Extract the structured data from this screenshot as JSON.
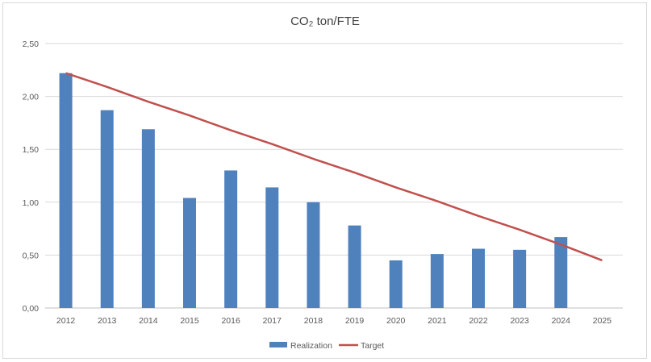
{
  "chart_data": {
    "type": "bar",
    "title": "CO₂ ton/FTE",
    "categories": [
      "2012",
      "2013",
      "2014",
      "2015",
      "2016",
      "2017",
      "2018",
      "2019",
      "2020",
      "2021",
      "2022",
      "2023",
      "2024",
      "2025"
    ],
    "y_tick_labels": [
      "0,00",
      "0,50",
      "1,00",
      "1,50",
      "2,00",
      "2,50"
    ],
    "ylim": [
      0,
      2.5
    ],
    "grid": true,
    "legend_position": "bottom",
    "series": [
      {
        "name": "Realization",
        "type": "bar",
        "color": "#4f81bd",
        "values": [
          2.22,
          1.87,
          1.69,
          1.04,
          1.3,
          1.14,
          1.0,
          0.78,
          0.45,
          0.51,
          0.56,
          0.55,
          0.67,
          null
        ]
      },
      {
        "name": "Target",
        "type": "line",
        "color": "#c0504d",
        "values": [
          2.22,
          2.09,
          1.95,
          1.82,
          1.68,
          1.55,
          1.41,
          1.28,
          1.14,
          1.01,
          0.87,
          0.74,
          0.6,
          0.45
        ]
      }
    ]
  }
}
